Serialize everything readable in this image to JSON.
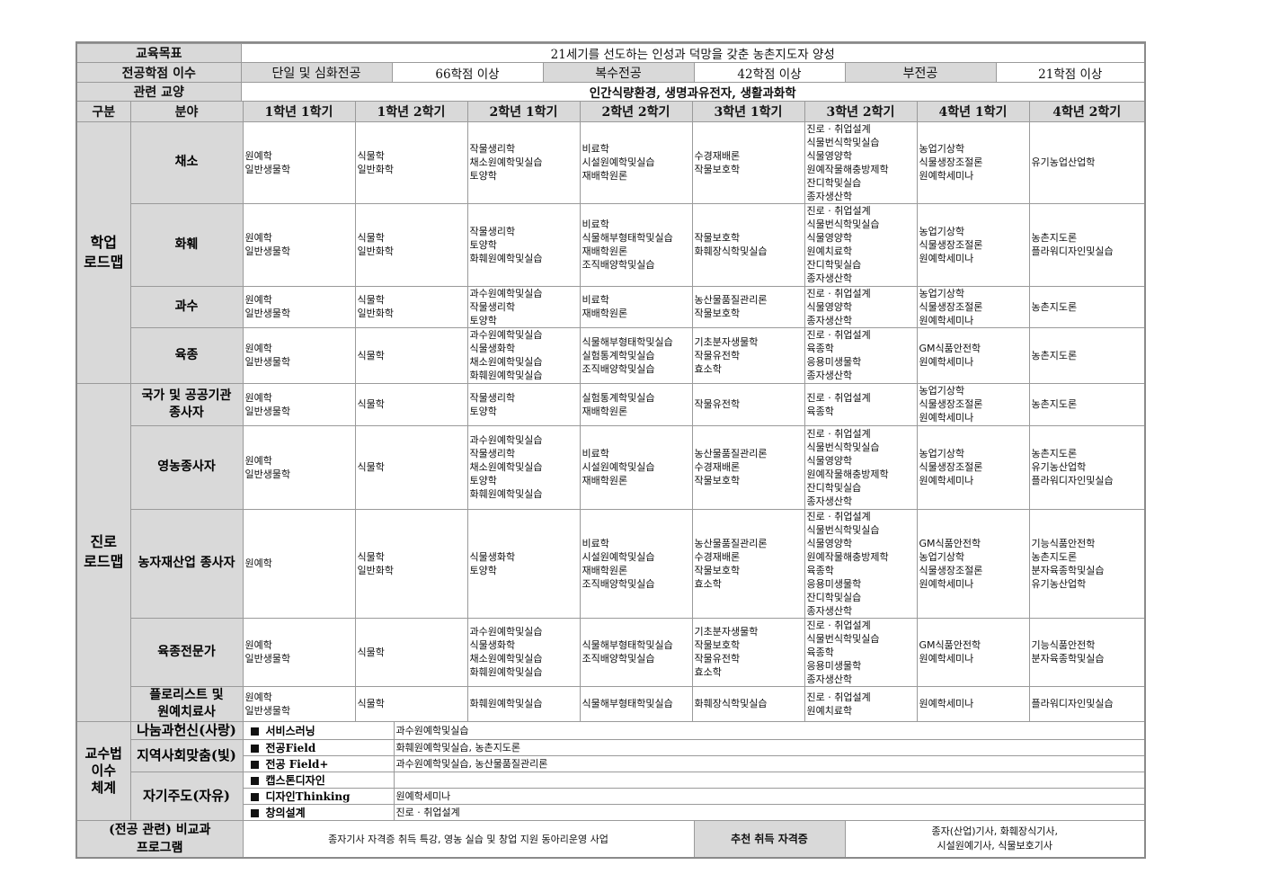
{
  "header": {
    "goal_label": "교육목표",
    "goal": "21세기를 선도하는 인성과 덕망을 갖춘 농촌지도자 양성",
    "credits_label": "전공학점 이수",
    "credits": [
      {
        "type": "단일 및 심화전공",
        "value": "66학점 이상"
      },
      {
        "type": "복수전공",
        "value": "42학점 이상"
      },
      {
        "type": "부전공",
        "value": "21학점 이상"
      }
    ],
    "liberal_label": "관련 교양",
    "liberal": "인간식량환경, 생명과유전자, 생활과화학"
  },
  "columns": {
    "division": "구분",
    "field": "분야",
    "semesters": [
      "1학년 1학기",
      "1학년 2학기",
      "2학년 1학기",
      "2학년 2학기",
      "3학년 1학기",
      "3학년 2학기",
      "4학년 1학기",
      "4학년 2학기"
    ]
  },
  "groups": [
    {
      "label": "학업\n로드맵",
      "rows": [
        {
          "field": "채소",
          "cells": [
            "원예학\n일반생물학",
            "식물학\n일반화학",
            "작물생리학\n채소원예학및실습\n토양학",
            "비료학\n시설원예학및실습\n재배학원론",
            "수경재배론\n작물보호학",
            "진로 · 취업설계\n식물번식학및실습\n식물영양학\n원예작물해충방제학\n잔디학및실습\n종자생산학",
            "농업기상학\n식물생장조절론\n원예학세미나",
            "유기농업산업학"
          ]
        },
        {
          "field": "화훼",
          "cells": [
            "원예학\n일반생물학",
            "식물학\n일반화학",
            "작물생리학\n토양학\n화훼원예학및실습",
            "비료학\n식물해부형태학및실습\n재배학원론\n조직배양학및실습",
            "작물보호학\n화훼장식학및실습",
            "진로 · 취업설계\n식물번식학및실습\n식물영양학\n원예치료학\n잔디학및실습\n종자생산학",
            "농업기상학\n식물생장조절론\n원예학세미나",
            "농촌지도론\n플라워디자인및실습"
          ]
        },
        {
          "field": "과수",
          "cells": [
            "원예학\n일반생물학",
            "식물학\n일반화학",
            "과수원예학및실습\n작물생리학\n토양학",
            "비료학\n재배학원론",
            "농산물품질관리론\n작물보호학",
            "진로 · 취업설계\n식물영양학\n종자생산학",
            "농업기상학\n식물생장조절론\n원예학세미나",
            "농촌지도론"
          ]
        },
        {
          "field": "육종",
          "cells": [
            "원예학\n일반생물학",
            "식물학",
            "과수원예학및실습\n식물생화학\n채소원예학및실습\n화훼원예학및실습",
            "식물해부형태학및실습\n실험통계학및실습\n조직배양학및실습",
            "기초분자생물학\n작물유전학\n효소학",
            "진로 · 취업설계\n육종학\n응용미생물학\n종자생산학",
            "GM식품안전학\n원예학세미나",
            "농촌지도론"
          ]
        }
      ]
    },
    {
      "label": "진로\n로드맵",
      "rows": [
        {
          "field": "국가 및 공공기관\n종사자",
          "cells": [
            "원예학\n일반생물학",
            "식물학",
            "작물생리학\n토양학",
            "실험통계학및실습\n재배학원론",
            "작물유전학",
            "진로 · 취업설계\n육종학",
            "농업기상학\n식물생장조절론\n원예학세미나",
            "농촌지도론"
          ]
        },
        {
          "field": "영농종사자",
          "cells": [
            "원예학\n일반생물학",
            "식물학",
            "과수원예학및실습\n작물생리학\n채소원예학및실습\n토양학\n화훼원예학및실습",
            "비료학\n시설원예학및실습\n재배학원론",
            "농산물품질관리론\n수경재배론\n작물보호학",
            "진로 · 취업설계\n식물번식학및실습\n식물영양학\n원예작물해충방제학\n잔디학및실습\n종자생산학",
            "농업기상학\n식물생장조절론\n원예학세미나",
            "농촌지도론\n유기농산업학\n플라워디자인및실습"
          ]
        },
        {
          "field": "농자재산업 종사자",
          "cells": [
            "원예학",
            "식물학\n일반화학",
            "식물생화학\n토양학",
            "비료학\n시설원예학및실습\n재배학원론\n조직배양학및실습",
            "농산물품질관리론\n수경재배론\n작물보호학\n효소학",
            "진로 · 취업설계\n식물번식학및실습\n식물영양학\n원예작물해충방제학\n육종학\n응용미생물학\n잔디학및실습\n종자생산학",
            "GM식품안전학\n농업기상학\n식물생장조절론\n원예학세미나",
            "기능식품안전학\n농촌지도론\n분자육종학및실습\n유기농산업학"
          ]
        },
        {
          "field": "육종전문가",
          "cells": [
            "원예학\n일반생물학",
            "식물학",
            "과수원예학및실습\n식물생화학\n채소원예학및실습\n화훼원예학및실습",
            "식물해부형태학및실습\n조직배양학및실습",
            "기초분자생물학\n작물보호학\n작물유전학\n효소학",
            "진로 · 취업설계\n식물번식학및실습\n육종학\n응용미생물학\n종자생산학",
            "GM식품안전학\n원예학세미나",
            "기능식품안전학\n분자육종학및실습"
          ]
        },
        {
          "field": "플로리스트 및\n원예치료사",
          "cells": [
            "원예학\n일반생물학",
            "식물학",
            "화훼원예학및실습",
            "식물해부형태학및실습",
            "화훼장식학및실습",
            "진로 · 취업설계\n원예치료학",
            "원예학세미나",
            "플라워디자인및실습"
          ]
        }
      ]
    }
  ],
  "pedagogy": {
    "label": "교수법\n이수\n체계",
    "categories": [
      "나눔과헌신(사랑)",
      "지역사회맞춤(빛)",
      "자기주도(자유)"
    ],
    "items": [
      {
        "name": "서비스러닝",
        "courses": "과수원예학및실습"
      },
      {
        "name": "전공Field",
        "courses": "화훼원예학및실습, 농촌지도론"
      },
      {
        "name": "전공 Field+",
        "courses": "과수원예학및실습, 농산물품질관리론"
      },
      {
        "name": "캡스톤디자인",
        "courses": ""
      },
      {
        "name": "디자인Thinking",
        "courses": "원예학세미나"
      },
      {
        "name": "창의설계",
        "courses": "진로 · 취업설계"
      }
    ]
  },
  "footer": {
    "program_label": "(전공 관련) 비교과\n프로그램",
    "program": "종자기사 자격증 취득 특강, 영농 실습 및 창업 지원 동아리운영 사업",
    "cert_label": "추천 취득 자격증",
    "certs": "종자(산업)기사, 화훼장식기사,\n시설원예기사, 식물보호기사"
  },
  "colors": {
    "header_bg": "#d9d9d9",
    "border": "#9a9a9a",
    "outer_border": "#8a8a8a"
  }
}
